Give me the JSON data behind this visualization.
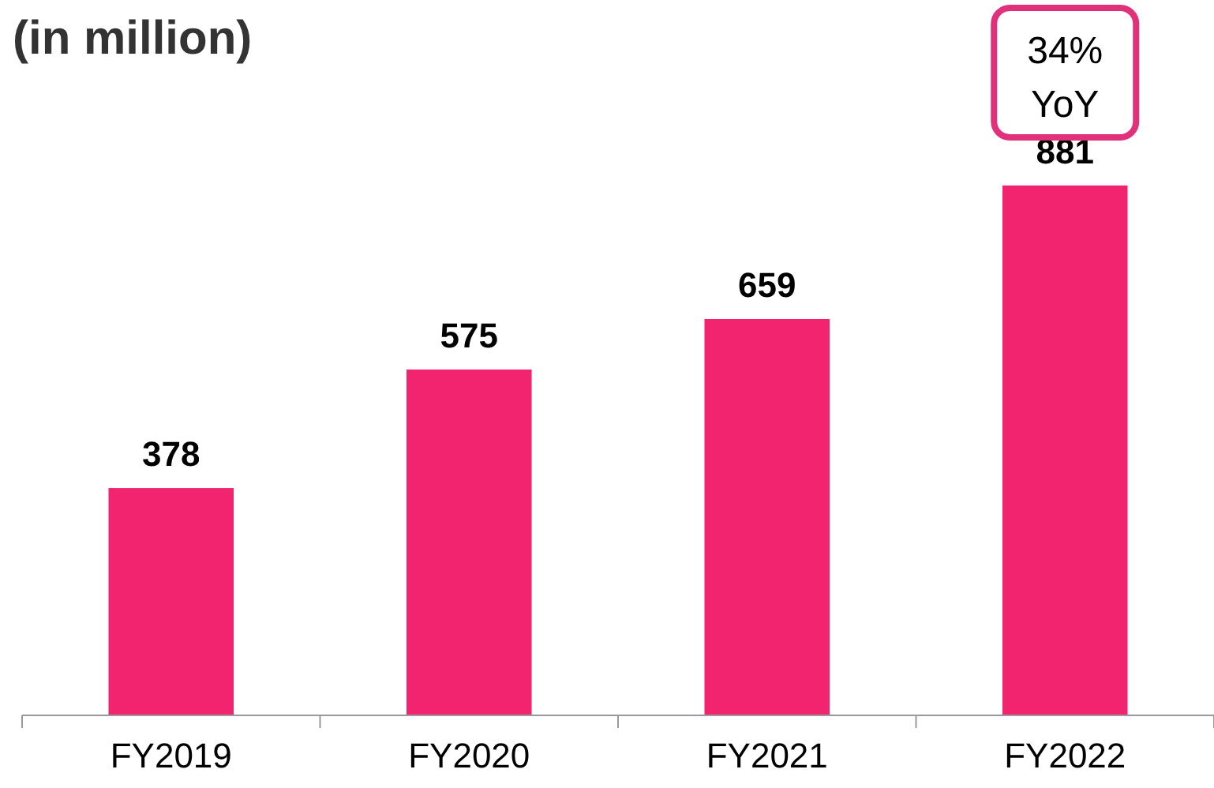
{
  "chart_data": {
    "type": "bar",
    "title": "(in million)",
    "categories": [
      "FY2019",
      "FY2020",
      "FY2021",
      "FY2022"
    ],
    "values": [
      378,
      575,
      659,
      881
    ],
    "color": "#f2236f",
    "data_labels": true,
    "annotations": [
      "34% YoY"
    ]
  }
}
